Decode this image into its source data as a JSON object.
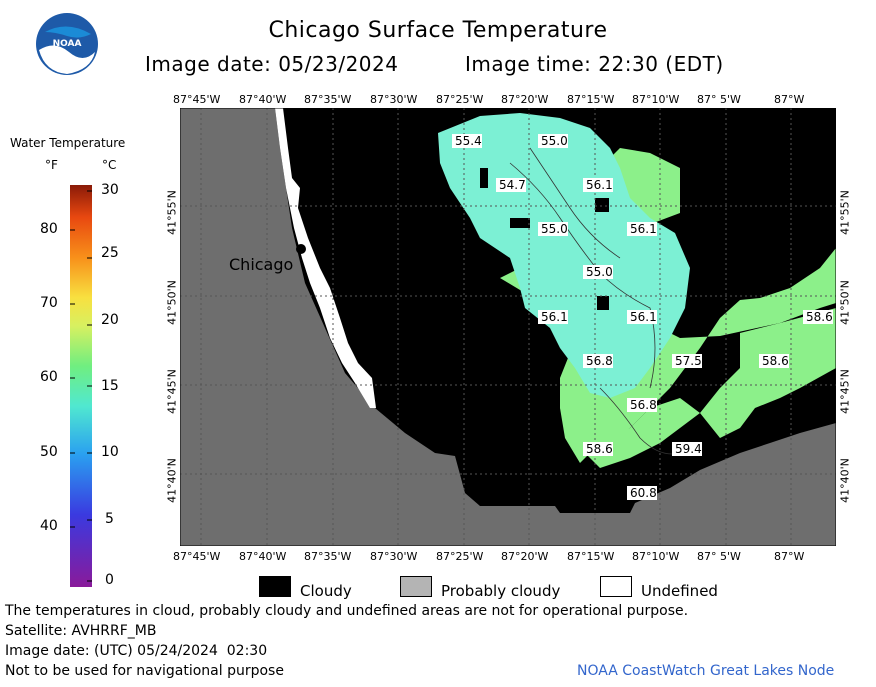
{
  "header": {
    "title": "Chicago Surface Temperature",
    "image_date": "Image date: 05/23/2024",
    "image_time": "Image time: 22:30 (EDT)",
    "logo_text": "NOAA"
  },
  "legend": {
    "title": "Water Temperature",
    "unit_f": "°F",
    "unit_c": "°C",
    "f_ticks": [
      "80",
      "70",
      "60",
      "50",
      "40"
    ],
    "c_ticks": [
      "30",
      "25",
      "20",
      "15",
      "10",
      "5",
      "0"
    ]
  },
  "axes": {
    "top_lon": [
      "87°45'W",
      "87°40'W",
      "87°35'W",
      "87°30'W",
      "87°25'W",
      "87°20'W",
      "87°15'W",
      "87°10'W",
      "87° 5'W",
      "87°W"
    ],
    "bottom_lon": [
      "87°45'W",
      "87°40'W",
      "87°35'W",
      "87°30'W",
      "87°25'W",
      "87°20'W",
      "87°15'W",
      "87°10'W",
      "87° 5'W",
      "87°W"
    ],
    "lat": [
      "41°55'N",
      "41°50'N",
      "41°45'N",
      "41°40'N"
    ]
  },
  "map": {
    "city_label": "Chicago",
    "temps": [
      "55.4",
      "55.0",
      "54.7",
      "56.1",
      "55.0",
      "56.1",
      "55.0",
      "56.1",
      "56.1",
      "58.6",
      "56.8",
      "57.5",
      "58.6",
      "56.8",
      "58.6",
      "59.4",
      "60.8"
    ],
    "colors": {
      "land": "#6e6e6e",
      "cloud": "#000000",
      "water_cool": "#7cf0d4",
      "water_warm": "#8cf08a",
      "undefined": "#ffffff"
    }
  },
  "key": {
    "cloudy": "Cloudy",
    "probably_cloudy": "Probably cloudy",
    "undefined": "Undefined"
  },
  "footer": {
    "note": "The temperatures in cloud, probably cloudy and undefined areas are not for operational purpose.",
    "satellite": "Satellite: AVHRRF_MB",
    "utc_date": "Image date: (UTC) 05/24/2024  02:30",
    "nav_warning": "Not to be used for navigational purpose",
    "credit": "NOAA CoastWatch Great Lakes Node"
  }
}
